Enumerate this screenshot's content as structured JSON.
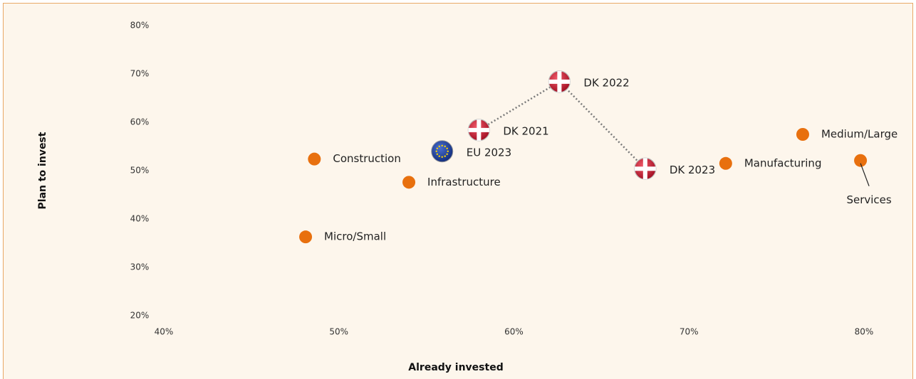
{
  "chart_data": {
    "type": "scatter",
    "xlabel": "Already invested",
    "ylabel": "Plan to invest",
    "xlim": [
      40,
      80
    ],
    "ylim": [
      20,
      80
    ],
    "xticks": [
      {
        "value": 40,
        "label": "40%"
      },
      {
        "value": 50,
        "label": "50%"
      },
      {
        "value": 60,
        "label": "60%"
      },
      {
        "value": 70,
        "label": "70%"
      },
      {
        "value": 80,
        "label": "80%"
      }
    ],
    "yticks": [
      {
        "value": 20,
        "label": "20%"
      },
      {
        "value": 30,
        "label": "30%"
      },
      {
        "value": 40,
        "label": "40%"
      },
      {
        "value": 50,
        "label": "50%"
      },
      {
        "value": 60,
        "label": "60%"
      },
      {
        "value": 70,
        "label": "70%"
      },
      {
        "value": 80,
        "label": "80%"
      }
    ],
    "grid": false,
    "series": [
      {
        "marker": "dot",
        "color": "#e8700e",
        "labels": [
          "Micro/Small",
          "Construction",
          "Infrastructure",
          "Manufacturing",
          "Medium/Large",
          "Services"
        ],
        "x": [
          48.1,
          48.6,
          54.0,
          72.1,
          76.5,
          79.8
        ],
        "values": [
          36.3,
          52.4,
          47.6,
          51.5,
          57.5,
          52.1
        ]
      },
      {
        "marker": "eu-flag",
        "color": "#1f3f9a",
        "labels": [
          "EU 2023"
        ],
        "x": [
          55.9
        ],
        "values": [
          54.0
        ]
      },
      {
        "marker": "dk-flag",
        "color": "#c8102e",
        "line": "dotted",
        "labels": [
          "DK 2021",
          "DK 2022",
          "DK 2023"
        ],
        "x": [
          58.0,
          62.6,
          67.5
        ],
        "values": [
          58.4,
          68.4,
          50.4
        ]
      }
    ]
  }
}
